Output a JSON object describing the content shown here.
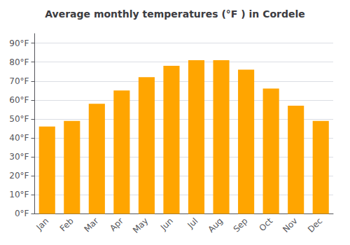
{
  "chart_data": {
    "type": "bar",
    "title": "Average monthly temperatures (°F ) in Cordele",
    "categories": [
      "Jan",
      "Feb",
      "Mar",
      "Apr",
      "May",
      "Jun",
      "Jul",
      "Aug",
      "Sep",
      "Oct",
      "Nov",
      "Dec"
    ],
    "values": [
      46,
      49,
      58,
      65,
      72,
      78,
      81,
      81,
      76,
      66,
      57,
      49
    ],
    "color": "#FFA500",
    "ylim": [
      0,
      95
    ],
    "yticks": [
      {
        "value": 0,
        "label": "0°F"
      },
      {
        "value": 10,
        "label": "10°F"
      },
      {
        "value": 20,
        "label": "20°F"
      },
      {
        "value": 30,
        "label": "30°F"
      },
      {
        "value": 40,
        "label": "40°F"
      },
      {
        "value": 50,
        "label": "50°F"
      },
      {
        "value": 60,
        "label": "60°F"
      },
      {
        "value": 70,
        "label": "70°F"
      },
      {
        "value": 80,
        "label": "80°F"
      },
      {
        "value": 90,
        "label": "90°F"
      }
    ],
    "grid": true
  }
}
